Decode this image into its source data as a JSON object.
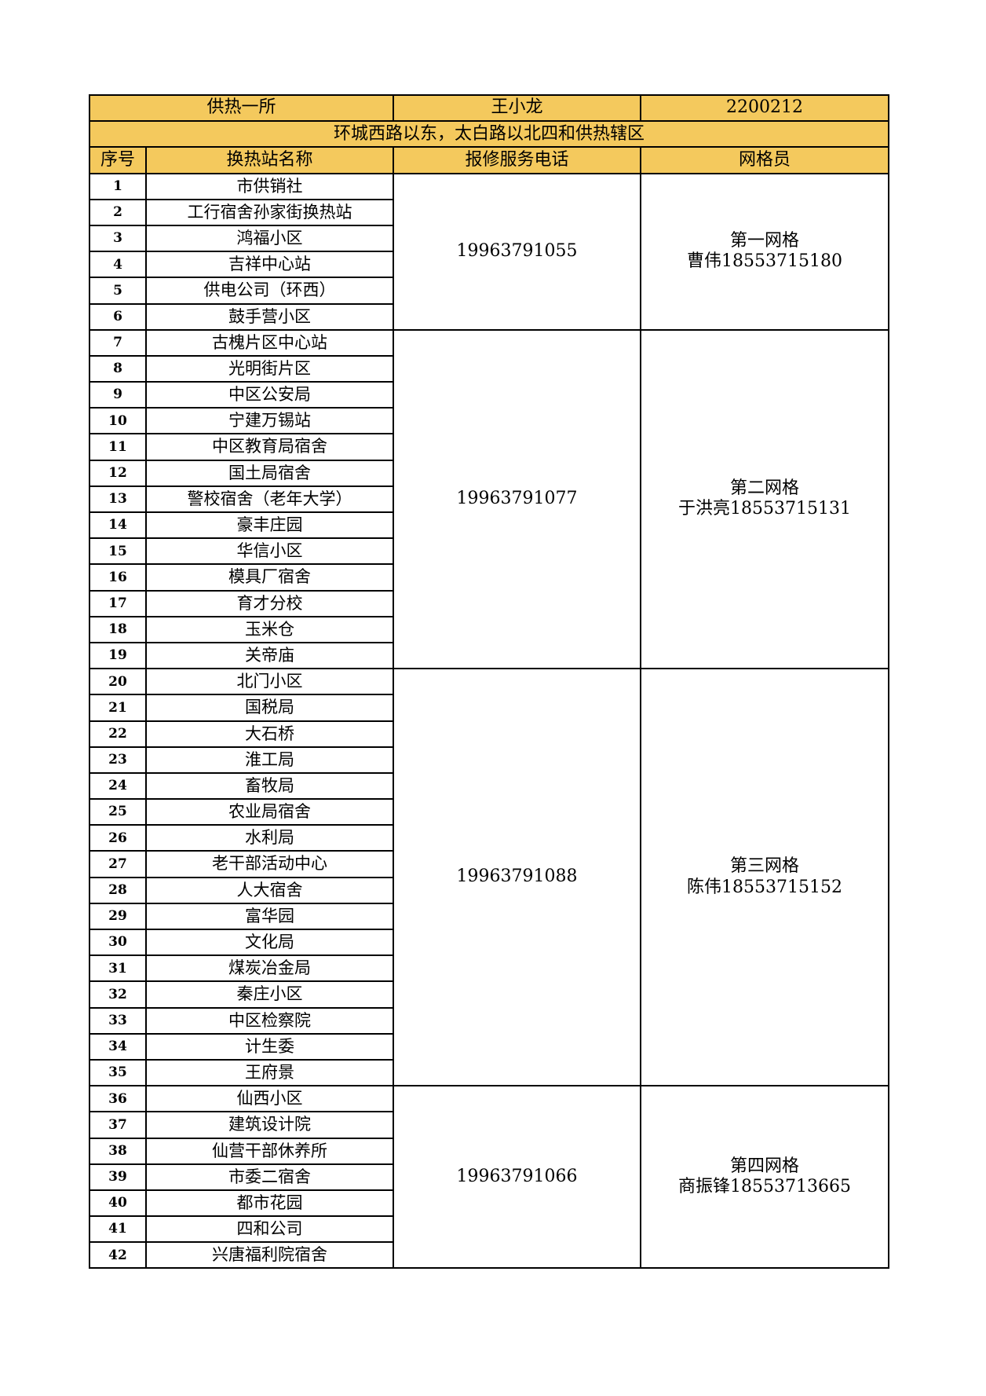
{
  "header": {
    "station": "供热一所",
    "manager": "王小龙",
    "code": "2200212"
  },
  "region": "环城西路以东，太白路以北四和供热辖区",
  "columns": [
    "序号",
    "换热站名称",
    "报修服务电话",
    "网格员"
  ],
  "colors": {
    "header_bg": "#f4c95d",
    "border": "#000000"
  },
  "groups": [
    {
      "phone": "19963791055",
      "grid": "第一网格",
      "staff": "曹伟18553715180",
      "rows": [
        [
          "1",
          "市供销社"
        ],
        [
          "2",
          "工行宿舍孙家街换热站"
        ],
        [
          "3",
          "鸿福小区"
        ],
        [
          "4",
          "吉祥中心站"
        ],
        [
          "5",
          "供电公司（环西）"
        ],
        [
          "6",
          "鼓手营小区"
        ]
      ]
    },
    {
      "phone": "19963791077",
      "grid": "第二网格",
      "staff": "于洪亮18553715131",
      "rows": [
        [
          "7",
          "古槐片区中心站"
        ],
        [
          "8",
          "光明街片区"
        ],
        [
          "9",
          "中区公安局"
        ],
        [
          "10",
          "宁建万锡站"
        ],
        [
          "11",
          "中区教育局宿舍"
        ],
        [
          "12",
          "国土局宿舍"
        ],
        [
          "13",
          "警校宿舍（老年大学）"
        ],
        [
          "14",
          "豪丰庄园"
        ],
        [
          "15",
          "华信小区"
        ],
        [
          "16",
          "模具厂宿舍"
        ],
        [
          "17",
          "育才分校"
        ],
        [
          "18",
          "玉米仓"
        ],
        [
          "19",
          "关帝庙"
        ]
      ]
    },
    {
      "phone": "19963791088",
      "grid": "第三网格",
      "staff": "陈伟18553715152",
      "rows": [
        [
          "20",
          "北门小区"
        ],
        [
          "21",
          "国税局"
        ],
        [
          "22",
          "大石桥"
        ],
        [
          "23",
          "淮工局"
        ],
        [
          "24",
          "畜牧局"
        ],
        [
          "25",
          "农业局宿舍"
        ],
        [
          "26",
          "水利局"
        ],
        [
          "27",
          "老干部活动中心"
        ],
        [
          "28",
          "人大宿舍"
        ],
        [
          "29",
          "富华园"
        ],
        [
          "30",
          "文化局"
        ],
        [
          "31",
          "煤炭冶金局"
        ],
        [
          "32",
          "秦庄小区"
        ],
        [
          "33",
          "中区检察院"
        ],
        [
          "34",
          "计生委"
        ],
        [
          "35",
          "王府景"
        ]
      ]
    },
    {
      "phone": "19963791066",
      "grid": "第四网格",
      "staff": "商振锋18553713665",
      "rows": [
        [
          "36",
          "仙西小区"
        ],
        [
          "37",
          "建筑设计院"
        ],
        [
          "38",
          "仙营干部休养所"
        ],
        [
          "39",
          "市委二宿舍"
        ],
        [
          "40",
          "都市花园"
        ],
        [
          "41",
          "四和公司"
        ],
        [
          "42",
          "兴唐福利院宿舍"
        ]
      ]
    }
  ]
}
